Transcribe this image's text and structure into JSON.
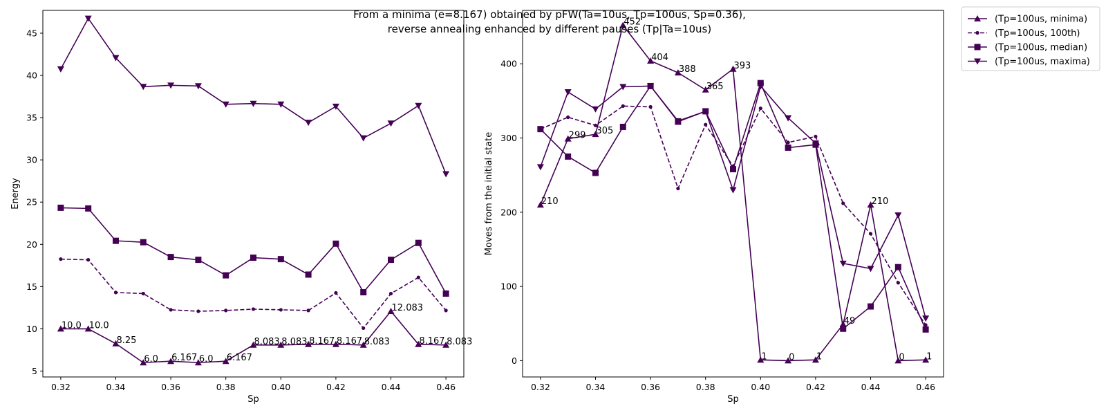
{
  "title_line1": "From a minima (e=8.167) obtained by pFW(Ta=10us, Tp=100us, Sp=0.36),",
  "title_line2": "reverse annealing enhanced by different pauses (Tp|Ta=10us)",
  "colors": {
    "series": "#440154"
  },
  "legend": {
    "placement": "outside top-right",
    "entries": [
      {
        "label": "(Tp=100us, minima)",
        "marker": "triangle-up",
        "linestyle": "solid"
      },
      {
        "label": "(Tp=100us, 100th)",
        "marker": "circle",
        "linestyle": "dashed"
      },
      {
        "label": "(Tp=100us, median)",
        "marker": "square",
        "linestyle": "solid"
      },
      {
        "label": "(Tp=100us, maxima)",
        "marker": "triangle-down",
        "linestyle": "solid"
      }
    ]
  },
  "chart_data": [
    {
      "type": "line",
      "xlabel": "Sp",
      "ylabel": "Energy",
      "xlim": [
        0.3135,
        0.4665
      ],
      "ylim": [
        4.3,
        47.7
      ],
      "xticks": [
        "0.32",
        "0.34",
        "0.36",
        "0.38",
        "0.40",
        "0.42",
        "0.44",
        "0.46"
      ],
      "yticks": [
        "5",
        "10",
        "15",
        "20",
        "25",
        "30",
        "35",
        "40",
        "45"
      ],
      "x": [
        0.32,
        0.33,
        0.34,
        0.35,
        0.36,
        0.37,
        0.38,
        0.39,
        0.4,
        0.41,
        0.42,
        0.43,
        0.44,
        0.45,
        0.46
      ],
      "series": [
        {
          "name": "(Tp=100us, minima)",
          "marker": "triangle-up",
          "linestyle": "solid",
          "values": [
            10.0,
            10.0,
            8.25,
            6.0,
            6.167,
            6.0,
            6.167,
            8.083,
            8.083,
            8.167,
            8.167,
            8.083,
            12.083,
            8.167,
            8.083
          ],
          "labels": [
            "10.0",
            "10.0",
            "8.25",
            "6.0",
            "6.167",
            "6.0",
            "6.167",
            "8.083",
            "8.083",
            "8.167",
            "8.167",
            "8.083",
            "12.083",
            "8.167",
            "8.083"
          ]
        },
        {
          "name": "(Tp=100us, 100th)",
          "marker": "circle",
          "linestyle": "dashed",
          "values": [
            18.25,
            18.17,
            14.3,
            14.17,
            12.25,
            12.08,
            12.17,
            12.33,
            12.25,
            12.17,
            14.25,
            10.08,
            14.17,
            16.08,
            12.17
          ]
        },
        {
          "name": "(Tp=100us, median)",
          "marker": "square",
          "linestyle": "solid",
          "values": [
            24.33,
            24.25,
            20.42,
            20.25,
            18.5,
            18.17,
            16.33,
            18.42,
            18.25,
            16.42,
            20.08,
            14.33,
            18.17,
            20.17,
            14.17
          ]
        },
        {
          "name": "(Tp=100us, maxima)",
          "marker": "triangle-down",
          "linestyle": "solid",
          "values": [
            40.75,
            46.75,
            42.08,
            38.67,
            38.83,
            38.75,
            36.58,
            36.67,
            36.58,
            34.42,
            36.33,
            32.58,
            34.33,
            36.42,
            28.33
          ]
        }
      ]
    },
    {
      "type": "line",
      "xlabel": "Sp",
      "ylabel": "Moves from the initial state",
      "xlim": [
        0.3135,
        0.4665
      ],
      "ylim": [
        -22,
        472
      ],
      "xticks": [
        "0.32",
        "0.34",
        "0.36",
        "0.38",
        "0.40",
        "0.42",
        "0.44",
        "0.46"
      ],
      "yticks": [
        "0",
        "100",
        "200",
        "300",
        "400"
      ],
      "x": [
        0.32,
        0.33,
        0.34,
        0.35,
        0.36,
        0.37,
        0.38,
        0.39,
        0.4,
        0.41,
        0.42,
        0.43,
        0.44,
        0.45,
        0.46
      ],
      "series": [
        {
          "name": "(Tp=100us, minima)",
          "marker": "triangle-up",
          "linestyle": "solid",
          "values": [
            210,
            299,
            305,
            452,
            404,
            388,
            365,
            393,
            1,
            0,
            1,
            49,
            210,
            0,
            1
          ],
          "labels": [
            "210",
            "299",
            "305",
            "452",
            "404",
            "388",
            "365",
            "393",
            "1",
            "0",
            "1",
            "49",
            "210",
            "0",
            "1"
          ]
        },
        {
          "name": "(Tp=100us, 100th)",
          "marker": "circle",
          "linestyle": "dashed",
          "values": [
            312,
            328,
            317,
            343,
            342,
            232,
            318,
            262,
            340,
            294,
            302,
            212,
            171,
            105,
            48
          ]
        },
        {
          "name": "(Tp=100us, median)",
          "marker": "square",
          "linestyle": "solid",
          "values": [
            312,
            275,
            253,
            315,
            370,
            322,
            336,
            258,
            374,
            287,
            291,
            43,
            73,
            126,
            42
          ]
        },
        {
          "name": "(Tp=100us, maxima)",
          "marker": "triangle-down",
          "linestyle": "solid",
          "values": [
            261,
            362,
            339,
            369,
            370,
            323,
            336,
            230,
            370,
            327,
            293,
            131,
            124,
            196,
            57
          ]
        }
      ]
    }
  ]
}
